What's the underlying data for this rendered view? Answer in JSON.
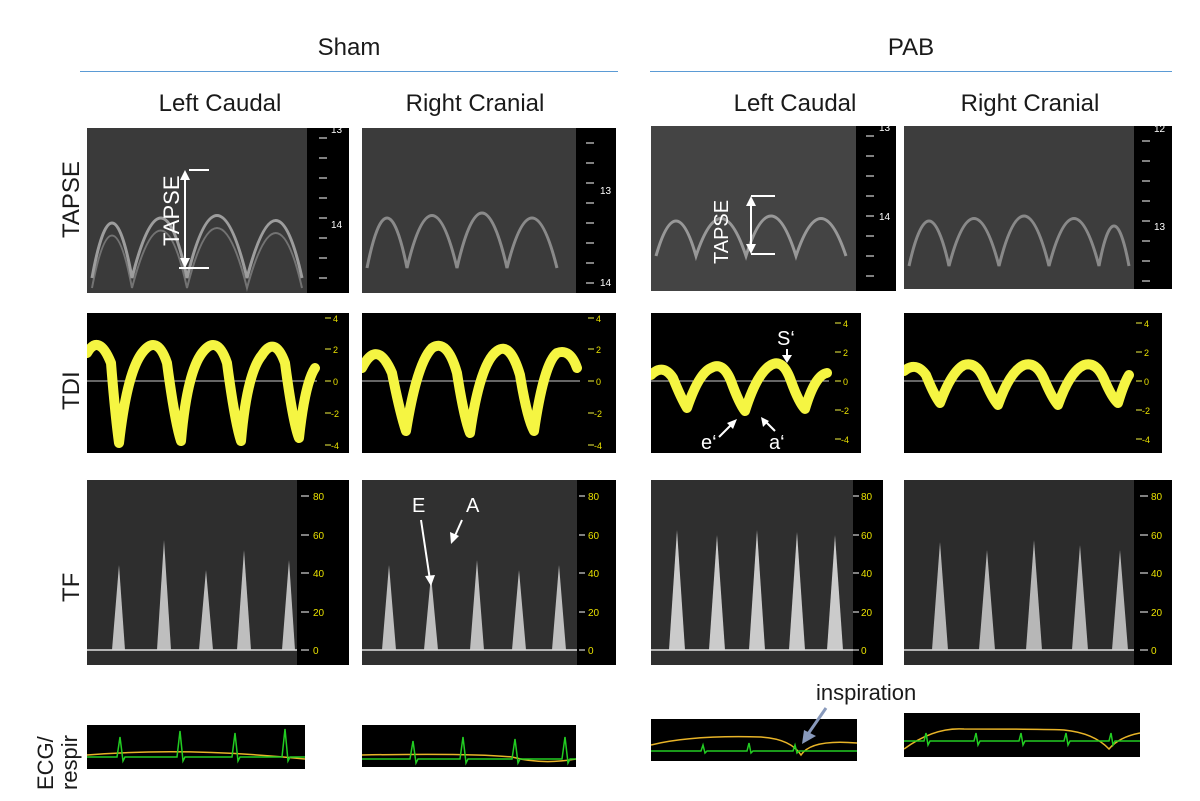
{
  "groups": [
    {
      "label": "Sham"
    },
    {
      "label": "PAB"
    }
  ],
  "columns": [
    {
      "label": "Left Caudal"
    },
    {
      "label": "Right Cranial"
    },
    {
      "label": "Left Caudal"
    },
    {
      "label": "Right Cranial"
    }
  ],
  "rows": [
    {
      "label": "TAPSE"
    },
    {
      "label": "TDI"
    },
    {
      "label": "TF"
    },
    {
      "label": "ECG/ respir"
    }
  ],
  "scales": {
    "tapse": [
      [
        "13",
        "14"
      ],
      [
        "13",
        "14"
      ],
      [
        "13",
        "14"
      ],
      [
        "12",
        "13"
      ]
    ],
    "tdi": [
      "4",
      "2",
      "0",
      "-2",
      "-4"
    ],
    "tf": [
      "80",
      "60",
      "40",
      "20",
      "0"
    ]
  },
  "annotations": {
    "tapse": "TAPSE",
    "s_wave": "S‘",
    "e_wave": "e‘",
    "a_wave": "a‘",
    "E": "E",
    "A": "A",
    "inspiration": "inspiration"
  },
  "colors": {
    "group_line": "#5b9bd5",
    "tdi_trace": "#f5f542",
    "ecg_trace": "#22cc22",
    "respiration_trace": "#e8b428",
    "scale_text_tdi": "#e8e000",
    "arrow_inspiration": "#8899bb"
  }
}
